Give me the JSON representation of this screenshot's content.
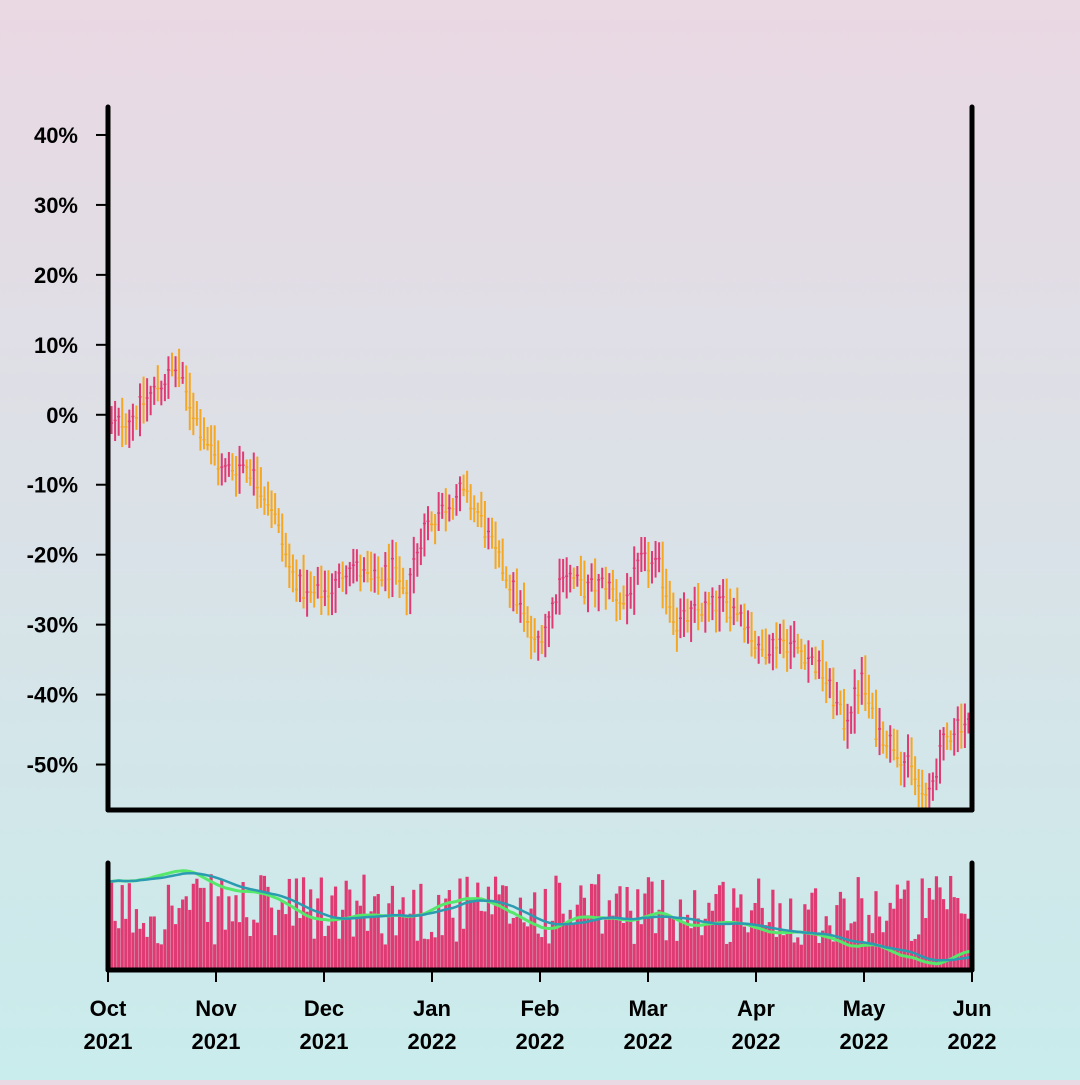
{
  "chart_data": {
    "type": "candlestick-hlc",
    "title": "",
    "price_axis": {
      "ticks": [
        "40%",
        "30%",
        "20%",
        "10%",
        "0%",
        "-10%",
        "-20%",
        "-30%",
        "-40%",
        "-50%"
      ],
      "tick_values": [
        40,
        30,
        20,
        10,
        0,
        -10,
        -20,
        -30,
        -40,
        -50
      ],
      "range": [
        -56.5,
        44
      ]
    },
    "time_axis": {
      "ticks": [
        {
          "month": "Oct",
          "year": "2021"
        },
        {
          "month": "Nov",
          "year": "2021"
        },
        {
          "month": "Dec",
          "year": "2021"
        },
        {
          "month": "Jan",
          "year": "2022"
        },
        {
          "month": "Feb",
          "year": "2022"
        },
        {
          "month": "Mar",
          "year": "2022"
        },
        {
          "month": "Apr",
          "year": "2022"
        },
        {
          "month": "May",
          "year": "2022"
        },
        {
          "month": "Jun",
          "year": "2022"
        }
      ],
      "start": "2021-10-01",
      "end": "2022-06-01"
    },
    "series_anchors": [
      [
        "2021-10-01",
        -2
      ],
      [
        "2021-10-08",
        0
      ],
      [
        "2021-10-15",
        4
      ],
      [
        "2021-10-20",
        6.5
      ],
      [
        "2021-10-27",
        -2
      ],
      [
        "2021-11-02",
        -8
      ],
      [
        "2021-11-09",
        -7
      ],
      [
        "2021-11-16",
        -13
      ],
      [
        "2021-11-21",
        -22
      ],
      [
        "2021-11-26",
        -26
      ],
      [
        "2021-12-03",
        -25
      ],
      [
        "2021-12-08",
        -21
      ],
      [
        "2021-12-14",
        -24
      ],
      [
        "2021-12-20",
        -22
      ],
      [
        "2021-12-23",
        -26
      ],
      [
        "2021-12-29",
        -16
      ],
      [
        "2022-01-04",
        -13
      ],
      [
        "2022-01-08",
        -11
      ],
      [
        "2022-01-13",
        -14
      ],
      [
        "2022-01-18",
        -20
      ],
      [
        "2022-01-23",
        -25
      ],
      [
        "2022-01-29",
        -33
      ],
      [
        "2022-02-02",
        -29
      ],
      [
        "2022-02-06",
        -22
      ],
      [
        "2022-02-12",
        -25
      ],
      [
        "2022-02-18",
        -24
      ],
      [
        "2022-02-23",
        -27
      ],
      [
        "2022-02-28",
        -21
      ],
      [
        "2022-03-05",
        -22
      ],
      [
        "2022-03-10",
        -30
      ],
      [
        "2022-03-16",
        -28
      ],
      [
        "2022-03-22",
        -27
      ],
      [
        "2022-03-28",
        -28
      ],
      [
        "2022-04-02",
        -34
      ],
      [
        "2022-04-08",
        -32
      ],
      [
        "2022-04-15",
        -34
      ],
      [
        "2022-04-20",
        -37
      ],
      [
        "2022-04-26",
        -44
      ],
      [
        "2022-05-01",
        -38
      ],
      [
        "2022-05-05",
        -45
      ],
      [
        "2022-05-10",
        -47
      ],
      [
        "2022-05-15",
        -51
      ],
      [
        "2022-05-19",
        -55.5
      ],
      [
        "2022-05-24",
        -47
      ],
      [
        "2022-05-28",
        -44
      ],
      [
        "2022-06-01",
        -44
      ]
    ],
    "colors": {
      "up": "#e03a73",
      "down": "#f5a623",
      "volume": "#e03a73",
      "ma_fast": "#55e86a",
      "ma_slow": "#2a9bb0",
      "axes": "#000000"
    },
    "volume_panel": {
      "type": "bar",
      "overlays": [
        "moving-average-fast",
        "moving-average-slow"
      ]
    },
    "grid": false,
    "legend": "none"
  }
}
